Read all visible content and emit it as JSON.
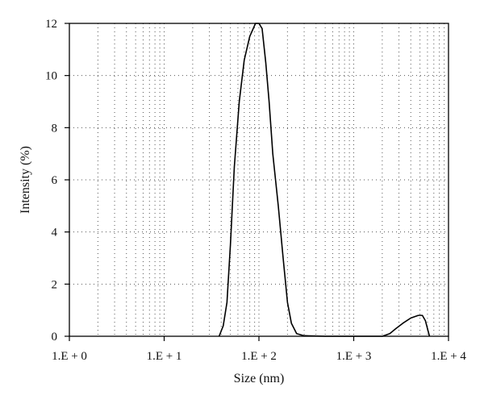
{
  "chart_data": {
    "type": "line",
    "xlabel": "Size (nm)",
    "ylabel": "Intensity (%)",
    "x_scale": "log10",
    "xlim": [
      1,
      10000
    ],
    "ylim": [
      0,
      12
    ],
    "x_ticks": [
      {
        "value": 1,
        "label": "1.E + 0"
      },
      {
        "value": 10,
        "label": "1.E + 1"
      },
      {
        "value": 100,
        "label": "1.E + 2"
      },
      {
        "value": 1000,
        "label": "1.E + 3"
      },
      {
        "value": 10000,
        "label": "1.E + 4"
      }
    ],
    "y_ticks": [
      0,
      2,
      4,
      6,
      8,
      10,
      12
    ],
    "grid": true,
    "grid_style": "dotted",
    "series": [
      {
        "points": [
          [
            38,
            0
          ],
          [
            42,
            0.4
          ],
          [
            46,
            1.3
          ],
          [
            50,
            3.5
          ],
          [
            55,
            6.5
          ],
          [
            62,
            9.0
          ],
          [
            70,
            10.6
          ],
          [
            80,
            11.5
          ],
          [
            92,
            12.0
          ],
          [
            100,
            12.0
          ],
          [
            108,
            11.8
          ],
          [
            118,
            10.5
          ],
          [
            128,
            9.0
          ],
          [
            140,
            7.0
          ],
          [
            160,
            5.0
          ],
          [
            180,
            3.0
          ],
          [
            200,
            1.3
          ],
          [
            220,
            0.5
          ],
          [
            250,
            0.1
          ],
          [
            300,
            0.02
          ],
          [
            500,
            0.0
          ],
          [
            1000,
            0.0
          ],
          [
            2000,
            0.0
          ],
          [
            2400,
            0.1
          ],
          [
            2800,
            0.3
          ],
          [
            3300,
            0.5
          ],
          [
            4000,
            0.7
          ],
          [
            4800,
            0.8
          ],
          [
            5300,
            0.8
          ],
          [
            5700,
            0.6
          ],
          [
            6300,
            0.0
          ]
        ]
      }
    ]
  }
}
